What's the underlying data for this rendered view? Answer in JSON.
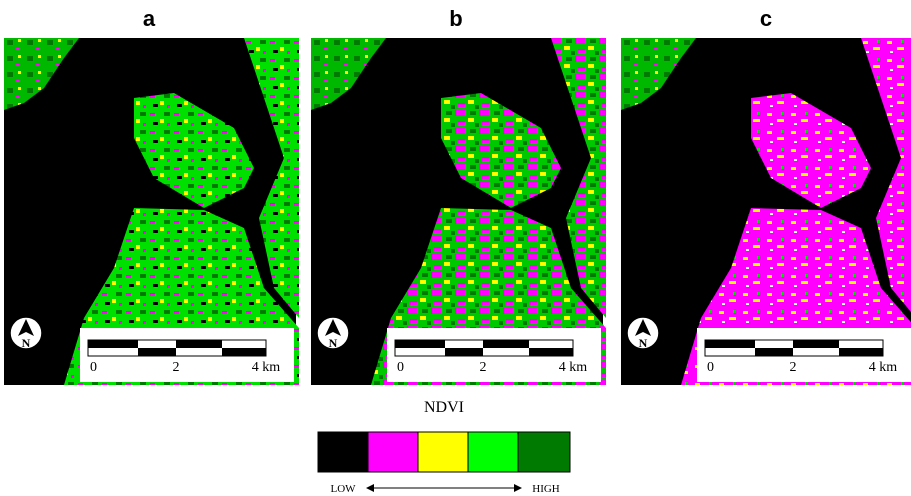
{
  "panels": [
    {
      "label": "a",
      "north": "N",
      "scale": [
        "0",
        "2",
        "4 km"
      ]
    },
    {
      "label": "b",
      "north": "N",
      "scale": [
        "0",
        "2",
        "4 km"
      ]
    },
    {
      "label": "c",
      "north": "N",
      "scale": [
        "0",
        "2",
        "4 km"
      ]
    }
  ],
  "legend": {
    "title": "NDVI",
    "low": "LOW",
    "high": "HIGH"
  }
}
